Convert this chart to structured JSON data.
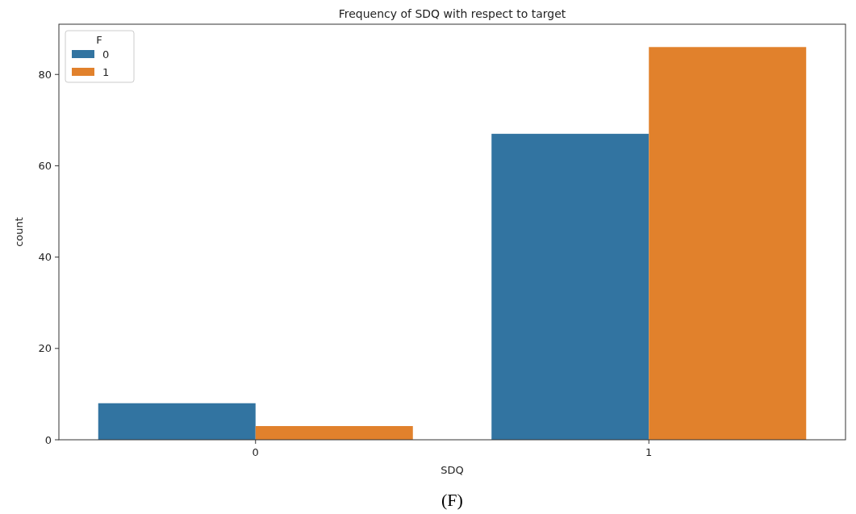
{
  "chart_data": {
    "type": "bar",
    "title": "Frequency of SDQ with respect to target",
    "xlabel": "SDQ",
    "ylabel": "count",
    "legend_title": "F",
    "legend": "top left",
    "grid": false,
    "categories": [
      "0",
      "1"
    ],
    "series": [
      {
        "name": "0",
        "color": "#3274a1",
        "values": [
          8,
          67
        ]
      },
      {
        "name": "1",
        "color": "#e1812c",
        "values": [
          3,
          86
        ]
      }
    ],
    "ylim": [
      0,
      91
    ],
    "yticks": [
      0,
      20,
      40,
      60,
      80
    ],
    "annotations": [
      "(F)"
    ]
  }
}
